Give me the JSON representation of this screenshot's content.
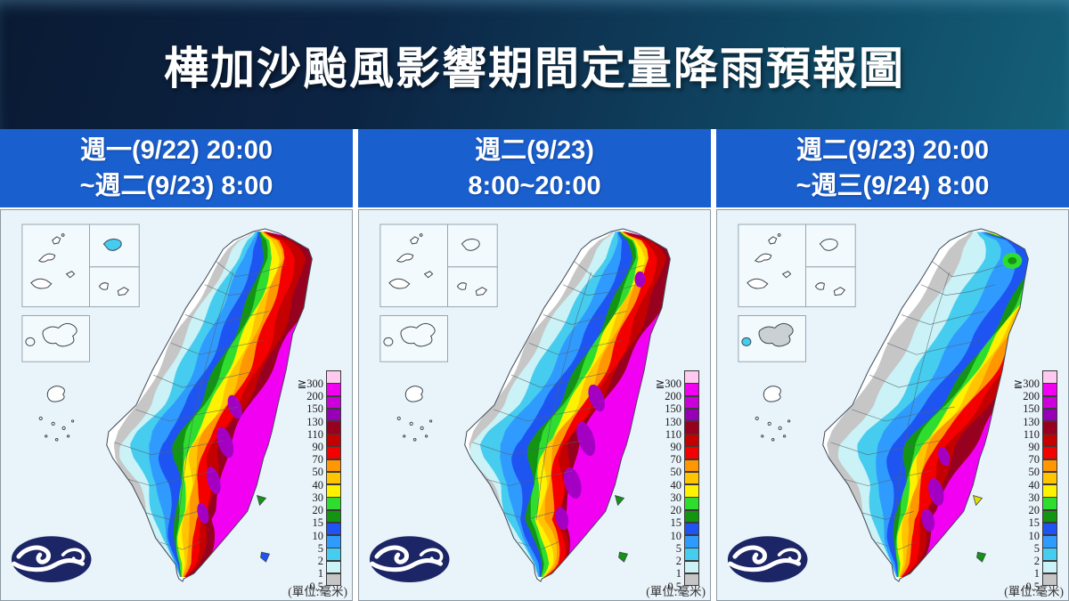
{
  "title": "樺加沙颱風影響期間定量降雨預報圖",
  "panels": [
    {
      "header_line1": "週一(9/22) 20:00",
      "header_line2": "~週二(9/23) 8:00",
      "bands": {
        "gray": [
          0.05,
          0.06,
          0.02,
          0.0,
          0.0
        ],
        "palecyan": [
          0.12,
          0.13,
          0.1,
          0.02,
          0.0
        ],
        "cyan": [
          0.22,
          0.2,
          0.18,
          0.08,
          0.02
        ],
        "skyblue": [
          0.3,
          0.3,
          0.27,
          0.15,
          0.06
        ],
        "blue": [
          0.4,
          0.4,
          0.36,
          0.22,
          0.1
        ],
        "dkgreen": [
          0.48,
          0.5,
          0.44,
          0.3,
          0.16
        ],
        "green": [
          0.52,
          0.55,
          0.47,
          0.33,
          0.2
        ],
        "yellow": [
          0.58,
          0.6,
          0.51,
          0.37,
          0.26
        ],
        "amber": [
          0.63,
          0.65,
          0.55,
          0.41,
          0.34
        ],
        "orange": [
          0.67,
          0.69,
          0.58,
          0.45,
          0.44
        ],
        "red": [
          0.73,
          0.74,
          0.62,
          0.5,
          0.58
        ],
        "dkred": [
          0.83,
          0.82,
          0.68,
          0.57,
          0.75
        ],
        "maroon": [
          0.93,
          0.88,
          0.72,
          0.61,
          0.9
        ],
        "magenta": [
          1.15,
          0.95,
          0.76,
          0.66,
          1.2
        ]
      },
      "spots": [
        [
          264,
          222,
          7,
          14,
          -20
        ],
        [
          253,
          262,
          8,
          18,
          -18
        ],
        [
          240,
          305,
          7,
          16,
          -15
        ],
        [
          228,
          342,
          6,
          12,
          -15
        ]
      ],
      "ne_green_spot": false,
      "inset_box2_fill": "#45ccef",
      "inset_penghu_fill": "#f4fafd",
      "inset_islet_fill": "#f4fafd",
      "islet_fills": [
        "#139413",
        "#1e55f2"
      ]
    },
    {
      "header_line1": "週二(9/23)",
      "header_line2": "8:00~20:00",
      "bands": {
        "gray": [
          0.1,
          0.05,
          0.0,
          0.0,
          0.0
        ],
        "palecyan": [
          0.2,
          0.12,
          0.05,
          0.0,
          0.0
        ],
        "cyan": [
          0.32,
          0.22,
          0.13,
          0.03,
          0.05
        ],
        "skyblue": [
          0.42,
          0.33,
          0.23,
          0.08,
          0.12
        ],
        "blue": [
          0.52,
          0.44,
          0.34,
          0.14,
          0.22
        ],
        "dkgreen": [
          0.6,
          0.54,
          0.43,
          0.22,
          0.35
        ],
        "green": [
          0.64,
          0.58,
          0.46,
          0.26,
          0.45
        ],
        "yellow": [
          0.68,
          0.62,
          0.5,
          0.31,
          0.6
        ],
        "amber": [
          0.72,
          0.66,
          0.53,
          0.37,
          0.72
        ],
        "orange": [
          0.76,
          0.7,
          0.56,
          0.42,
          0.82
        ],
        "red": [
          0.8,
          0.74,
          0.59,
          0.47,
          0.92
        ],
        "dkred": [
          0.88,
          0.81,
          0.64,
          0.53,
          1.05
        ],
        "maroon": [
          0.96,
          0.86,
          0.67,
          0.56,
          1.1
        ],
        "magenta": [
          1.15,
          0.92,
          0.7,
          0.59,
          1.2
        ]
      },
      "spots": [
        [
          317,
          78,
          6,
          9,
          0
        ],
        [
          268,
          212,
          8,
          16,
          -20
        ],
        [
          256,
          258,
          9,
          20,
          -18
        ],
        [
          241,
          308,
          9,
          18,
          -15
        ],
        [
          229,
          348,
          7,
          13,
          -12
        ]
      ],
      "ne_green_spot": false,
      "inset_box2_fill": "#f4fafd",
      "inset_penghu_fill": "#f4fafd",
      "inset_islet_fill": "#f4fafd",
      "islet_fills": [
        "#139413",
        "#139413"
      ]
    },
    {
      "header_line1": "週二(9/23) 20:00",
      "header_line2": "~週三(9/24) 8:00",
      "bands": {
        "gray": [
          0.12,
          0.08,
          0.0,
          0.0,
          0.0
        ],
        "palecyan": [
          0.3,
          0.22,
          0.12,
          0.02,
          0.0
        ],
        "cyan": [
          0.55,
          0.4,
          0.25,
          0.1,
          0.03
        ],
        "skyblue": [
          0.75,
          0.55,
          0.35,
          0.18,
          0.08
        ],
        "blue": [
          0.95,
          0.7,
          0.45,
          0.26,
          0.14
        ],
        "dkgreen": [
          1.05,
          0.83,
          0.54,
          0.34,
          0.22
        ],
        "green": [
          1.1,
          0.87,
          0.57,
          0.37,
          0.27
        ],
        "yellow": [
          1.15,
          0.91,
          0.61,
          0.41,
          0.33
        ],
        "amber": [
          1.2,
          0.95,
          0.64,
          0.45,
          0.41
        ],
        "orange": [
          1.25,
          0.99,
          0.67,
          0.48,
          0.52
        ],
        "red": [
          1.3,
          1.04,
          0.71,
          0.52,
          0.66
        ],
        "dkred": [
          1.35,
          1.1,
          0.8,
          0.6,
          0.85
        ],
        "maroon": [
          1.4,
          1.15,
          0.86,
          0.64,
          1.0
        ],
        "magenta": [
          1.45,
          1.25,
          0.95,
          0.68,
          1.15
        ]
      },
      "spots": [
        [
          256,
          278,
          6,
          11,
          -18
        ],
        [
          247,
          318,
          8,
          16,
          -15
        ],
        [
          238,
          350,
          7,
          13,
          -12
        ]
      ],
      "ne_green_spot": true,
      "inset_box2_fill": "#f4fafd",
      "inset_penghu_fill": "#cbd0d4",
      "inset_islet_fill": "#45ccef",
      "islet_fills": [
        "#dde000",
        "#139413"
      ]
    }
  ],
  "legend": {
    "labels": [
      "≧300",
      "200",
      "150",
      "130",
      "110",
      "90",
      "70",
      "50",
      "40",
      "30",
      "20",
      "15",
      "10",
      "5",
      "2",
      "1",
      "0.5"
    ],
    "colors": [
      "#ffc9f0",
      "#f200f2",
      "#cc00dc",
      "#9800b8",
      "#97001f",
      "#c40000",
      "#f40000",
      "#ff9700",
      "#ffc500",
      "#fff200",
      "#2fdd2f",
      "#139413",
      "#1e55f2",
      "#2f9bff",
      "#45ccef",
      "#cbf2f6",
      "#c6c6c6"
    ],
    "unit_label": "(單位:毫米)"
  },
  "band_colors": {
    "gray": "#c6c6c6",
    "palecyan": "#cbf2f6",
    "cyan": "#45ccef",
    "skyblue": "#2f9bff",
    "blue": "#1e55f2",
    "dkgreen": "#139413",
    "green": "#2fdd2f",
    "yellow": "#fff200",
    "amber": "#ffc500",
    "orange": "#ff9700",
    "red": "#f40000",
    "dkred": "#c40000",
    "maroon": "#97001f",
    "magenta": "#f200f2",
    "spot_purple": "#a400c4",
    "pink": "#ffc9f0"
  },
  "logo": {
    "name": "central-weather-administration-logo",
    "bg": "#1c2566",
    "fg": "#ffffff"
  },
  "colors": {
    "header_bg": "#1a5fce",
    "title_grad_dark": "#0a1a33",
    "title_grad_teal": "#156079",
    "sea_bg": "#e9f3fa"
  }
}
